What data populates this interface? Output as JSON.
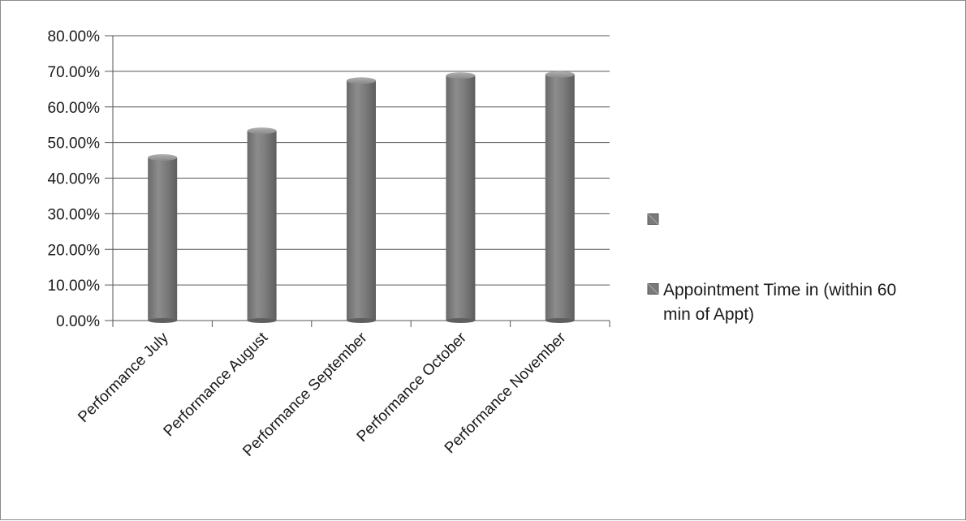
{
  "chart_data": {
    "type": "bar",
    "categories": [
      "Performance July",
      "Performance August",
      "Performance September",
      "Performance October",
      "Performance November"
    ],
    "series": [
      {
        "name": "Appointment Time in (within 60 min of Appt)",
        "values": [
          45.8,
          53.3,
          67.4,
          68.8,
          69.1
        ]
      }
    ],
    "y_ticks": [
      "0.00%",
      "10.00%",
      "20.00%",
      "30.00%",
      "40.00%",
      "50.00%",
      "60.00%",
      "70.00%",
      "80.00%"
    ],
    "ylim": [
      0,
      80
    ],
    "grid": true,
    "legend": {
      "placement": "right",
      "entries": [
        "",
        "Appointment Time in (within 60 min of Appt)"
      ],
      "label_lines": [
        [
          "Appointment Time in (within 60",
          "min of Appt)"
        ]
      ]
    },
    "colors": {
      "bar": "#7a7a7a",
      "bar_dark": "#5f5f5f",
      "bar_light": "#9a9a9a",
      "grid": "#555555",
      "text": "#1a1a1a"
    }
  }
}
